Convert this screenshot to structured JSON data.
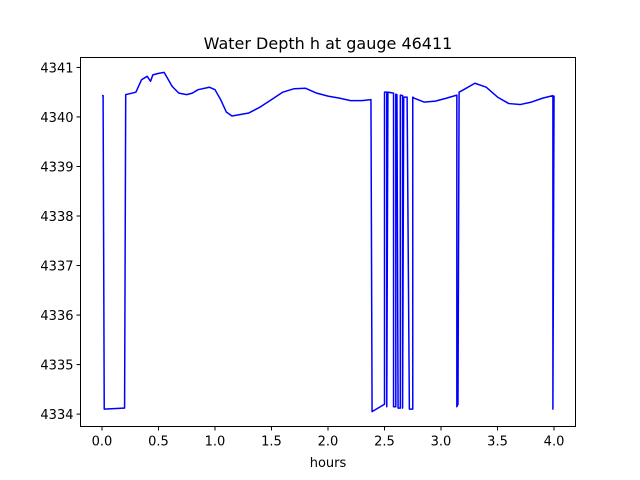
{
  "chart_data": {
    "type": "line",
    "title": "Water Depth h at gauge 46411",
    "xlabel": "hours",
    "ylabel": "",
    "xlim": [
      -0.19,
      4.19
    ],
    "ylim": [
      4333.75,
      4341.2
    ],
    "xticks": [
      0.0,
      0.5,
      1.0,
      1.5,
      2.0,
      2.5,
      3.0,
      3.5,
      4.0
    ],
    "xtick_labels": [
      "0.0",
      "0.5",
      "1.0",
      "1.5",
      "2.0",
      "2.5",
      "3.0",
      "3.5",
      "4.0"
    ],
    "yticks": [
      4334,
      4335,
      4336,
      4337,
      4338,
      4339,
      4340,
      4341
    ],
    "ytick_labels": [
      "4334",
      "4335",
      "4336",
      "4337",
      "4338",
      "4339",
      "4340",
      "4341"
    ],
    "grid": false,
    "series": [
      {
        "color": "#0000ff",
        "x": [
          0.0,
          0.01,
          0.02,
          0.19,
          0.2,
          0.21,
          0.3,
          0.35,
          0.4,
          0.43,
          0.45,
          0.5,
          0.55,
          0.58,
          0.62,
          0.68,
          0.75,
          0.8,
          0.85,
          0.95,
          1.0,
          1.05,
          1.1,
          1.15,
          1.2,
          1.3,
          1.4,
          1.5,
          1.6,
          1.7,
          1.8,
          1.9,
          2.0,
          2.1,
          2.2,
          2.3,
          2.38,
          2.39,
          2.5,
          2.5,
          2.52,
          2.52,
          2.53,
          2.58,
          2.58,
          2.6,
          2.6,
          2.61,
          2.62,
          2.64,
          2.64,
          2.66,
          2.66,
          2.67,
          2.7,
          2.72,
          2.75,
          2.75,
          2.76,
          2.85,
          2.95,
          3.05,
          3.14,
          3.14,
          3.15,
          3.16,
          3.16,
          3.2,
          3.3,
          3.4,
          3.5,
          3.6,
          3.7,
          3.8,
          3.9,
          3.99,
          3.99,
          4.0
        ],
        "y": [
          4340.43,
          4340.43,
          4334.1,
          4334.12,
          4334.12,
          4340.45,
          4340.5,
          4340.75,
          4340.82,
          4340.72,
          4340.85,
          4340.88,
          4340.9,
          4340.78,
          4340.62,
          4340.48,
          4340.45,
          4340.48,
          4340.55,
          4340.6,
          4340.55,
          4340.35,
          4340.1,
          4340.02,
          4340.04,
          4340.08,
          4340.2,
          4340.35,
          4340.5,
          4340.57,
          4340.58,
          4340.48,
          4340.42,
          4340.38,
          4340.33,
          4340.33,
          4340.35,
          4334.05,
          4334.2,
          4340.5,
          4340.5,
          4334.15,
          4340.5,
          4340.48,
          4334.15,
          4334.15,
          4340.46,
          4340.45,
          4334.12,
          4334.12,
          4340.44,
          4340.43,
          4334.12,
          4340.4,
          4340.4,
          4334.1,
          4334.1,
          4340.4,
          4340.38,
          4340.3,
          4340.32,
          4340.38,
          4340.44,
          4334.15,
          4334.2,
          4340.48,
          4340.5,
          4340.55,
          4340.68,
          4340.6,
          4340.4,
          4340.27,
          4340.25,
          4340.3,
          4340.38,
          4340.43,
          4334.1,
          4340.43
        ]
      }
    ]
  }
}
